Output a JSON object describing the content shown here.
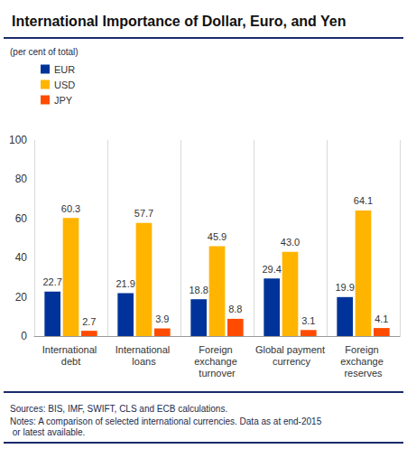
{
  "chart_data": {
    "type": "bar",
    "title": "International Importance of Dollar, Euro, and Yen",
    "subtitle": "(per cent of total)",
    "categories": [
      "International debt",
      "International loans",
      "Foreign exchange turnover",
      "Global payment currency",
      "Foreign exchange reserves"
    ],
    "series": [
      {
        "name": "EUR",
        "color": "#003399",
        "values": [
          22.7,
          21.9,
          18.8,
          29.4,
          19.9
        ]
      },
      {
        "name": "USD",
        "color": "#FFB400",
        "values": [
          60.3,
          57.7,
          45.9,
          43.0,
          64.1
        ],
        "value_labels": [
          "60.3",
          "57.7",
          "45.9",
          "43.0",
          "64.1"
        ]
      },
      {
        "name": "JPY",
        "color": "#FF4B00",
        "values": [
          2.7,
          3.9,
          8.8,
          3.1,
          4.1
        ]
      }
    ],
    "ylim": [
      0,
      100
    ],
    "yticks": [
      0,
      20,
      40,
      60,
      80,
      100
    ],
    "grid": false,
    "legend": "top-left",
    "data_labels": true,
    "annotations": [
      "Sources: BIS, IMF, SWIFT, CLS and ECB calculations.",
      "Notes: A comparison of selected international currencies. Data as at end-2015 or latest available."
    ]
  }
}
